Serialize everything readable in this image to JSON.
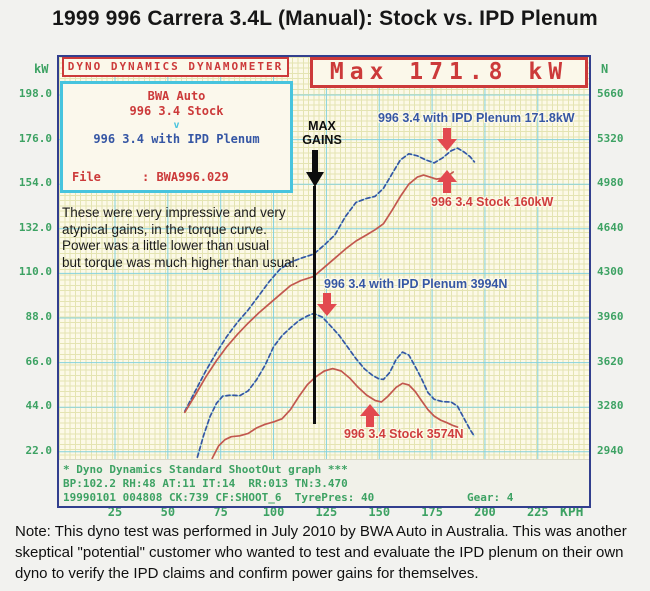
{
  "page": {
    "title": "1999 996 Carrera 3.4L (Manual): Stock vs. IPD Plenum",
    "note": "Note: This dyno test was performed in July 2010 by BWA Auto in Australia. This was another skeptical \"potential\" customer who wanted to test and evaluate the IPD plenum on their own dyno to verify the IPD claims and confirm power gains for themselves."
  },
  "panel": {
    "header": "DYNO DYNAMICS DYNAMOMETER",
    "shop": "BWA Auto",
    "run_stock": "996 3.4 Stock",
    "versus": "v",
    "run_ipd": "996 3.4 with IPD Plenum",
    "file_label": "File",
    "file_value": ": BWA996.029"
  },
  "max_box": {
    "text": "Max 171.8 kW"
  },
  "annotations": {
    "comment": "These were very impressive and very\natypical gains, in the torque curve.\nPower was a little lower than usual\nbut torque was much higher than usual.",
    "max_gains_line1": "MAX",
    "max_gains_line2": "GAINS",
    "ipd_power_label": "996 3.4 with IPD Plenum 171.8kW",
    "stock_power_label": "996 3.4 Stock 160kW",
    "ipd_torque_label": "996 3.4 with IPD Plenum 3994N",
    "stock_torque_label": "996 3.4 Stock 3574N"
  },
  "status": {
    "line1": "* Dyno Dynamics Standard ShootOut graph ***",
    "line2": "BP:102.2 RH:48 AT:11 IT:14  RR:013 TN:3.470",
    "line3": "19990101 004808 CK:739 CF:SHOOT_6  TyrePres: 40              Gear: 4"
  },
  "colors": {
    "stock": "#c2574e",
    "ipd": "#3556a4",
    "ipd_underlay": "#9adbe2",
    "label_red": "#cf3d3d",
    "red_accent": "#cc3a3a",
    "arrow_red": "#e2494f",
    "axis_green": "#3da263",
    "grid_major": "#85d2de",
    "grid_minor": "#e4e4b2",
    "border_navy": "#323f8e",
    "cyan_border": "#47c4de"
  },
  "chart_data": {
    "type": "line",
    "title": "1999 996 Carrera 3.4L (Manual): Stock vs. IPD Plenum",
    "grid": true,
    "x_axis": {
      "label": "KPH",
      "ticks": [
        25,
        50,
        75,
        100,
        125,
        150,
        175,
        200,
        225
      ],
      "range": [
        -1.5,
        249
      ]
    },
    "y_axis_left": {
      "label": "kW",
      "ticks": [
        "198.0",
        "176.0",
        "154.0",
        "132.0",
        "110.0",
        "88.0",
        "66.0",
        "44.0",
        "22.0"
      ],
      "range": [
        3,
        217
      ]
    },
    "y_axis_right": {
      "label": "N",
      "ticks": [
        "5660",
        "5320",
        "4980",
        "4640",
        "4300",
        "3960",
        "3620",
        "3280",
        "2940"
      ],
      "range": [
        2650,
        5950
      ]
    },
    "peaks": {
      "ipd_power_kw": 171.8,
      "stock_power_kw": 160,
      "ipd_force_n": 3994,
      "stock_force_n": 3574
    },
    "series": [
      {
        "name": "996 3.4 with IPD Plenum (power kW)",
        "axis": "kW",
        "style": "dashed",
        "color_key": "ipd",
        "points": [
          [
            58,
            42
          ],
          [
            63,
            52
          ],
          [
            68,
            62
          ],
          [
            73,
            71
          ],
          [
            78,
            79
          ],
          [
            83,
            86
          ],
          [
            88,
            92
          ],
          [
            93,
            99
          ],
          [
            98,
            106
          ],
          [
            103,
            112
          ],
          [
            108,
            115.5
          ],
          [
            113,
            117.5
          ],
          [
            119,
            119.5
          ],
          [
            124,
            124
          ],
          [
            129,
            129
          ],
          [
            134,
            138
          ],
          [
            139,
            145
          ],
          [
            144,
            147
          ],
          [
            148,
            148
          ],
          [
            152,
            152
          ],
          [
            156,
            159
          ],
          [
            160,
            166
          ],
          [
            164,
            169
          ],
          [
            168,
            168
          ],
          [
            172,
            166
          ],
          [
            176,
            164.5
          ],
          [
            180,
            167
          ],
          [
            184,
            170.5
          ],
          [
            187,
            171.8
          ],
          [
            190,
            170
          ],
          [
            193,
            167.5
          ],
          [
            195,
            165
          ]
        ]
      },
      {
        "name": "996 3.4 Stock (power kW)",
        "axis": "kW",
        "style": "solid",
        "color_key": "stock",
        "points": [
          [
            58,
            41.5
          ],
          [
            63,
            50
          ],
          [
            68,
            59
          ],
          [
            73,
            67
          ],
          [
            78,
            74
          ],
          [
            83,
            80
          ],
          [
            88,
            85.5
          ],
          [
            93,
            90.5
          ],
          [
            98,
            95
          ],
          [
            103,
            99.5
          ],
          [
            108,
            104
          ],
          [
            113,
            106.5
          ],
          [
            119,
            108.5
          ],
          [
            124,
            113
          ],
          [
            129,
            117.5
          ],
          [
            134,
            122
          ],
          [
            139,
            126
          ],
          [
            144,
            129
          ],
          [
            148,
            131.5
          ],
          [
            152,
            134.5
          ],
          [
            156,
            141
          ],
          [
            160,
            148
          ],
          [
            164,
            154
          ],
          [
            168,
            157.5
          ],
          [
            171,
            158.5
          ],
          [
            174,
            157.5
          ],
          [
            177,
            156.5
          ],
          [
            180,
            157
          ],
          [
            183,
            158.5
          ],
          [
            185,
            160
          ]
        ]
      },
      {
        "name": "996 3.4 with IPD Plenum (tractive force N)",
        "axis": "N",
        "style": "dashed",
        "color_key": "ipd",
        "points": [
          [
            64,
            2900
          ],
          [
            67,
            3070
          ],
          [
            70,
            3210
          ],
          [
            73,
            3310
          ],
          [
            76,
            3365
          ],
          [
            80,
            3372
          ],
          [
            84,
            3368
          ],
          [
            88,
            3405
          ],
          [
            92,
            3490
          ],
          [
            96,
            3600
          ],
          [
            100,
            3740
          ],
          [
            104,
            3825
          ],
          [
            108,
            3885
          ],
          [
            112,
            3940
          ],
          [
            116,
            3976
          ],
          [
            119,
            3994
          ],
          [
            123,
            3968
          ],
          [
            127,
            3900
          ],
          [
            131,
            3828
          ],
          [
            135,
            3740
          ],
          [
            139,
            3650
          ],
          [
            143,
            3572
          ],
          [
            147,
            3520
          ],
          [
            150,
            3495
          ],
          [
            152,
            3492
          ],
          [
            155,
            3545
          ],
          [
            158,
            3645
          ],
          [
            161,
            3700
          ],
          [
            164,
            3678
          ],
          [
            167,
            3590
          ],
          [
            170,
            3498
          ],
          [
            173,
            3392
          ],
          [
            176,
            3340
          ],
          [
            180,
            3322
          ],
          [
            184,
            3320
          ],
          [
            187,
            3288
          ],
          [
            190,
            3198
          ],
          [
            193,
            3108
          ],
          [
            195,
            3058
          ]
        ]
      },
      {
        "name": "996 3.4 Stock (tractive force N)",
        "axis": "N",
        "style": "solid",
        "color_key": "stock",
        "points": [
          [
            71,
            2890
          ],
          [
            74,
            2985
          ],
          [
            77,
            3032
          ],
          [
            80,
            3055
          ],
          [
            84,
            3062
          ],
          [
            88,
            3080
          ],
          [
            92,
            3122
          ],
          [
            96,
            3150
          ],
          [
            100,
            3168
          ],
          [
            104,
            3192
          ],
          [
            108,
            3262
          ],
          [
            112,
            3362
          ],
          [
            116,
            3452
          ],
          [
            120,
            3512
          ],
          [
            124,
            3556
          ],
          [
            128,
            3574
          ],
          [
            132,
            3556
          ],
          [
            136,
            3502
          ],
          [
            140,
            3432
          ],
          [
            144,
            3372
          ],
          [
            148,
            3332
          ],
          [
            151,
            3320
          ],
          [
            154,
            3362
          ],
          [
            158,
            3432
          ],
          [
            161,
            3462
          ],
          [
            164,
            3450
          ],
          [
            167,
            3400
          ],
          [
            170,
            3330
          ],
          [
            173,
            3262
          ],
          [
            176,
            3212
          ],
          [
            179,
            3182
          ],
          [
            182,
            3162
          ],
          [
            185,
            3140
          ],
          [
            187,
            3128
          ]
        ]
      }
    ]
  }
}
